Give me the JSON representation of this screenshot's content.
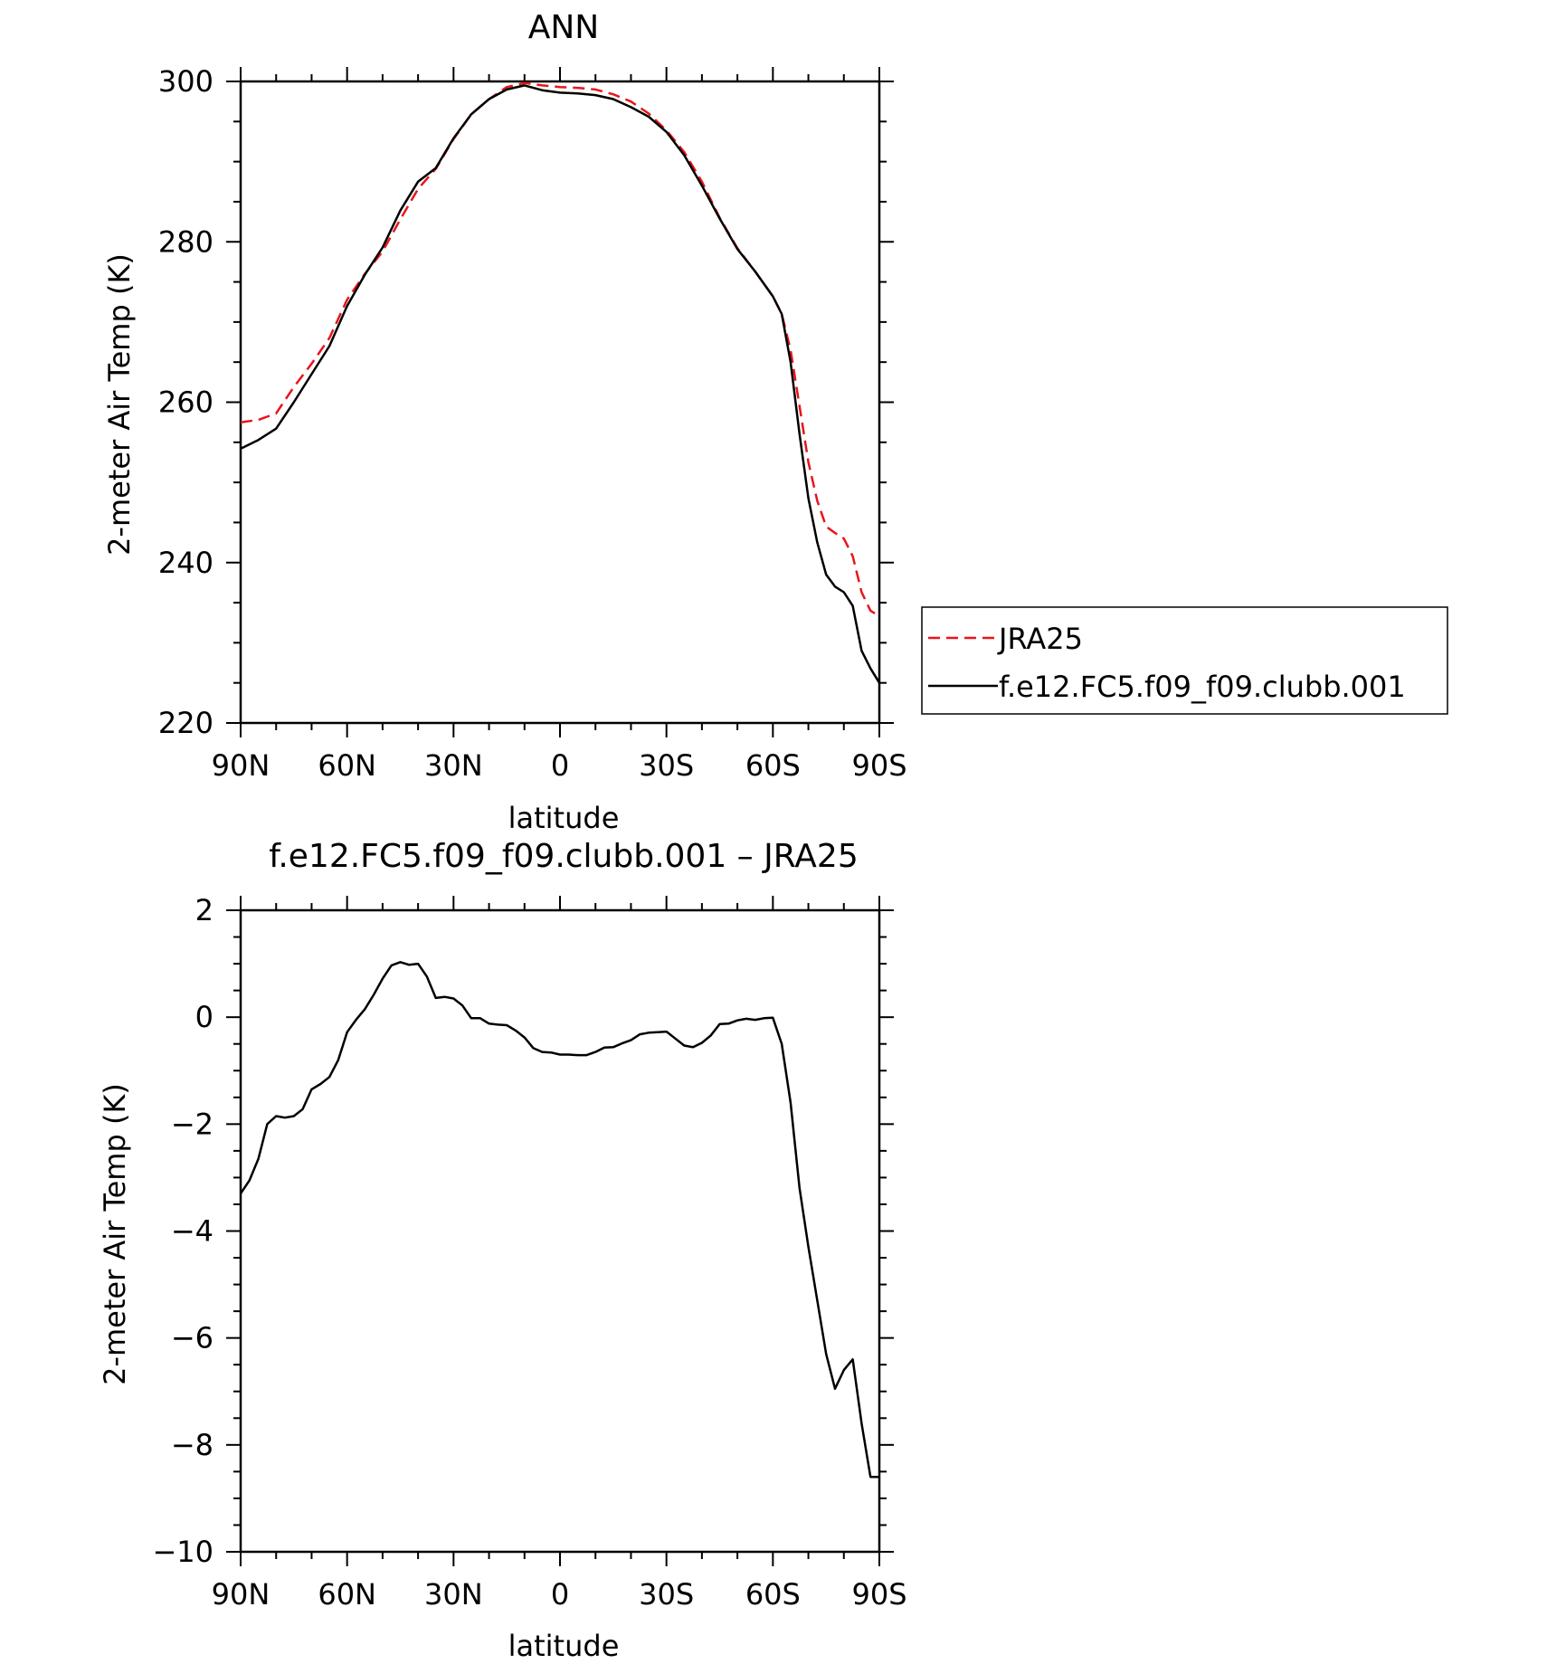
{
  "chart_data": [
    {
      "type": "line",
      "title": "ANN",
      "xlabel": "latitude",
      "ylabel": "2-meter Air Temp (K)",
      "xlim": [
        90,
        -90
      ],
      "ylim": [
        220,
        300
      ],
      "xticks": [
        90,
        60,
        30,
        0,
        -30,
        -60,
        -90
      ],
      "xtick_labels": [
        "90N",
        "60N",
        "30N",
        "0",
        "30S",
        "60S",
        "90S"
      ],
      "yticks": [
        220,
        240,
        260,
        280,
        300
      ],
      "ytick_labels": [
        "220",
        "240",
        "260",
        "280",
        "300"
      ],
      "grid": false,
      "legend": "right, outside plot area",
      "series": [
        {
          "name": "JRA25",
          "color": "#e8151b",
          "dash": "dashed",
          "x": [
            90,
            85,
            80,
            75,
            70,
            65,
            60,
            55,
            50,
            45,
            40,
            35,
            30,
            25,
            20,
            15,
            10,
            5,
            0,
            -5,
            -10,
            -15,
            -20,
            -25,
            -30,
            -35,
            -40,
            -45,
            -50,
            -55,
            -60,
            -62.5,
            -65,
            -67.5,
            -70,
            -72.5,
            -75,
            -77.5,
            -80,
            -82.5,
            -85,
            -87.5,
            -90
          ],
          "y": [
            257.5,
            257.8,
            258.6,
            261.9,
            264.8,
            268.0,
            272.8,
            276.0,
            278.8,
            282.8,
            286.6,
            289.1,
            292.8,
            295.9,
            297.8,
            299.3,
            299.8,
            299.5,
            299.3,
            299.2,
            299.0,
            298.4,
            297.5,
            296.0,
            293.9,
            291.2,
            287.5,
            283.0,
            279.2,
            276.3,
            273.2,
            271.0,
            266.5,
            259.5,
            252.5,
            247.7,
            244.5,
            243.7,
            243.0,
            240.8,
            236.3,
            234.0,
            233.3
          ]
        },
        {
          "name": "f.e12.FC5.f09_f09.clubb.001",
          "color": "#000000",
          "dash": "solid",
          "x": [
            90,
            85,
            80,
            75,
            70,
            65,
            60,
            55,
            50,
            45,
            40,
            35,
            30,
            25,
            20,
            15,
            10,
            5,
            0,
            -5,
            -10,
            -15,
            -20,
            -25,
            -30,
            -35,
            -40,
            -45,
            -50,
            -55,
            -60,
            -62.5,
            -65,
            -67.5,
            -70,
            -72.5,
            -75,
            -77.5,
            -80,
            -82.5,
            -85,
            -87.5,
            -90
          ],
          "y": [
            254.2,
            255.3,
            256.7,
            260.0,
            263.5,
            267.0,
            272.0,
            275.9,
            279.3,
            283.9,
            287.5,
            289.2,
            292.9,
            295.9,
            297.8,
            299.0,
            299.5,
            298.9,
            298.6,
            298.5,
            298.3,
            297.8,
            296.8,
            295.6,
            293.7,
            290.8,
            287.0,
            282.9,
            279.1,
            276.3,
            273.2,
            271.0,
            265.0,
            256.0,
            248.0,
            242.5,
            238.5,
            237.0,
            236.3,
            234.6,
            229.0,
            226.8,
            225.0
          ]
        }
      ],
      "legend_entries": [
        "JRA25",
        "f.e12.FC5.f09_f09.clubb.001"
      ]
    },
    {
      "type": "line",
      "title": "f.e12.FC5.f09_f09.clubb.001 – JRA25",
      "xlabel": "latitude",
      "ylabel": "2-meter Air Temp (K)",
      "xlim": [
        90,
        -90
      ],
      "ylim": [
        -10,
        2
      ],
      "xticks": [
        90,
        60,
        30,
        0,
        -30,
        -60,
        -90
      ],
      "xtick_labels": [
        "90N",
        "60N",
        "30N",
        "0",
        "30S",
        "60S",
        "90S"
      ],
      "yticks": [
        -10,
        -8,
        -6,
        -4,
        -2,
        0,
        2
      ],
      "ytick_labels": [
        "−10",
        "−8",
        "−6",
        "−4",
        "−2",
        "0",
        "2"
      ],
      "grid": false,
      "series": [
        {
          "color": "#000000",
          "dash": "solid",
          "x": [
            90,
            87.5,
            85,
            82.5,
            80,
            77.5,
            75,
            72.5,
            70,
            67.5,
            65,
            62.5,
            60,
            57.5,
            55,
            52.5,
            50,
            47.5,
            45,
            42.5,
            40,
            37.5,
            35,
            32.5,
            30,
            27.5,
            25,
            22.5,
            20,
            17.5,
            15,
            12.5,
            10,
            7.5,
            5,
            2.5,
            0,
            -2.5,
            -5,
            -7.5,
            -10,
            -12.5,
            -15,
            -17.5,
            -20,
            -22.5,
            -25,
            -27.5,
            -30,
            -32.5,
            -35,
            -37.5,
            -40,
            -42.5,
            -45,
            -47.5,
            -50,
            -52.5,
            -55,
            -57.5,
            -60,
            -62.5,
            -65,
            -67.5,
            -70,
            -72.5,
            -75,
            -77.5,
            -80,
            -82.5,
            -85,
            -87.5,
            -90
          ],
          "y": [
            -3.3,
            -3.05,
            -2.65,
            -2.0,
            -1.85,
            -1.88,
            -1.85,
            -1.72,
            -1.35,
            -1.25,
            -1.12,
            -0.8,
            -0.28,
            -0.05,
            0.15,
            0.42,
            0.72,
            0.97,
            1.03,
            0.98,
            1.0,
            0.76,
            0.36,
            0.38,
            0.35,
            0.22,
            -0.02,
            -0.02,
            -0.12,
            -0.14,
            -0.15,
            -0.25,
            -0.38,
            -0.58,
            -0.65,
            -0.66,
            -0.7,
            -0.7,
            -0.71,
            -0.71,
            -0.65,
            -0.57,
            -0.56,
            -0.49,
            -0.43,
            -0.32,
            -0.29,
            -0.28,
            -0.27,
            -0.4,
            -0.53,
            -0.56,
            -0.48,
            -0.34,
            -0.13,
            -0.12,
            -0.06,
            -0.03,
            -0.05,
            -0.02,
            -0.01,
            -0.5,
            -1.6,
            -3.2,
            -4.3,
            -5.3,
            -6.3,
            -6.95,
            -6.6,
            -6.4,
            -7.6,
            -8.6,
            -8.6
          ]
        }
      ]
    }
  ]
}
